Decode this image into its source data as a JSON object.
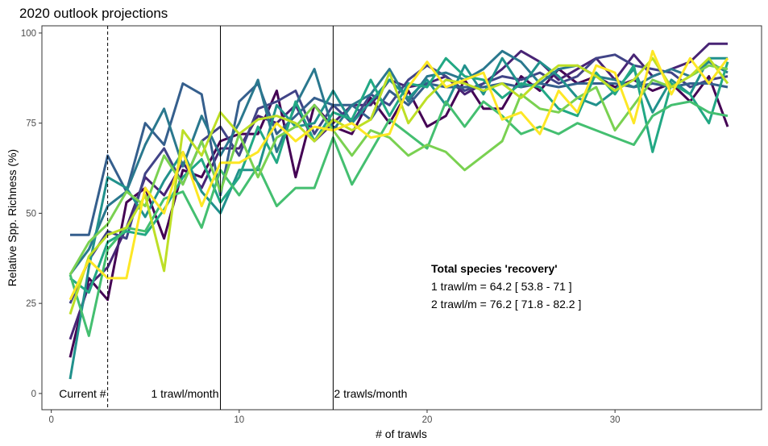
{
  "chart_data": {
    "type": "line",
    "title": "2020 outlook projections",
    "xlabel": "# of trawls",
    "ylabel": "Relative Spp. Richness (%)",
    "xlim": [
      -0.5,
      37.8
    ],
    "ylim": [
      -4.5,
      102
    ],
    "x_ticks": [
      0,
      10,
      20,
      30
    ],
    "y_ticks": [
      0,
      25,
      50,
      75,
      100
    ],
    "x_tick_labels": [
      "0",
      "10",
      "20",
      "30"
    ],
    "y_tick_labels": [
      "0",
      "25",
      "50",
      "75",
      "100"
    ],
    "grid": false,
    "legend": "none",
    "vlines": [
      {
        "x": 3,
        "style": "dashed",
        "label": "Current #",
        "label_anchor": "end"
      },
      {
        "x": 9,
        "style": "solid",
        "label": "1 trawl/month",
        "label_anchor": "end"
      },
      {
        "x": 15,
        "style": "solid",
        "label": "2 trawls/month",
        "label_anchor": "start"
      }
    ],
    "annotation": {
      "title": "Total species 'recovery'",
      "lines": [
        "1 trawl/m = 64.2 [ 53.8 - 71 ]",
        "2 trawl/m = 76.2 [ 71.8 - 82.2 ]"
      ]
    },
    "x": [
      1,
      2,
      3,
      4,
      5,
      6,
      7,
      8,
      9,
      10,
      11,
      12,
      13,
      14,
      15,
      16,
      17,
      18,
      19,
      20,
      21,
      22,
      23,
      24,
      25,
      26,
      27,
      28,
      29,
      30,
      31,
      32,
      33,
      34,
      35,
      36
    ],
    "series": [
      {
        "color": "#440154",
        "values": [
          10,
          32,
          26,
          53,
          57,
          43,
          62,
          60,
          70,
          72,
          72,
          84,
          60,
          80,
          74,
          72,
          82,
          75,
          84,
          74,
          77,
          87,
          79,
          79,
          88,
          84,
          90,
          86,
          88,
          85,
          87,
          84,
          86,
          81,
          88,
          74
        ]
      },
      {
        "color": "#482475",
        "values": [
          15,
          30,
          35,
          46,
          60,
          55,
          64,
          57,
          68,
          68,
          77,
          75,
          80,
          70,
          75,
          80,
          80,
          87,
          85,
          86,
          88,
          83,
          86,
          90,
          95,
          92,
          87,
          90,
          93,
          87,
          94,
          88,
          90,
          92,
          97,
          97
        ]
      },
      {
        "color": "#414487",
        "values": [
          25,
          37,
          45,
          43,
          61,
          68,
          58,
          70,
          74,
          66,
          79,
          81,
          84,
          72,
          80,
          75,
          83,
          80,
          87,
          91,
          88,
          84,
          86,
          88,
          87,
          89,
          86,
          88,
          93,
          94,
          91,
          90,
          89,
          85,
          87,
          88
        ]
      },
      {
        "color": "#355f8d",
        "values": [
          44,
          44,
          66,
          56,
          75,
          69,
          86,
          83,
          55,
          81,
          86,
          72,
          77,
          82,
          80,
          80,
          76,
          84,
          80,
          86,
          85,
          85,
          85,
          86,
          85,
          86,
          85,
          86,
          86,
          86,
          85,
          86,
          85,
          86,
          86,
          85
        ]
      },
      {
        "color": "#2a788e",
        "values": [
          33,
          40,
          52,
          56,
          69,
          79,
          63,
          77,
          66,
          75,
          87,
          67,
          80,
          90,
          73,
          80,
          83,
          90,
          81,
          88,
          89,
          87,
          90,
          95,
          92,
          86,
          90,
          91,
          88,
          87,
          85,
          88,
          90,
          88,
          92,
          89
        ]
      },
      {
        "color": "#21918c",
        "values": [
          4,
          35,
          60,
          57,
          49,
          59,
          67,
          56,
          50,
          62,
          62,
          80,
          74,
          75,
          84,
          75,
          81,
          87,
          82,
          87,
          80,
          91,
          83,
          93,
          85,
          92,
          88,
          82,
          80,
          84,
          90,
          78,
          87,
          83,
          93,
          93
        ]
      },
      {
        "color": "#22a884",
        "values": [
          32,
          28,
          42,
          45,
          44,
          51,
          60,
          65,
          53,
          60,
          74,
          64,
          81,
          70,
          78,
          76,
          87,
          77,
          86,
          85,
          93,
          88,
          87,
          82,
          86,
          85,
          79,
          77,
          89,
          83,
          91,
          67,
          86,
          83,
          75,
          92
        ]
      },
      {
        "color": "#44bf70",
        "values": [
          33,
          16,
          40,
          46,
          45,
          54,
          56,
          46,
          62,
          55,
          63,
          52,
          57,
          57,
          71,
          58,
          67,
          76,
          72,
          68,
          81,
          74,
          81,
          77,
          72,
          74,
          72,
          75,
          73,
          71,
          69,
          77,
          80,
          81,
          78,
          77
        ]
      },
      {
        "color": "#7ad151",
        "values": [
          33,
          42,
          47,
          56,
          52,
          66,
          58,
          70,
          56,
          72,
          60,
          71,
          74,
          80,
          73,
          66,
          73,
          71,
          66,
          69,
          67,
          62,
          66,
          70,
          83,
          79,
          78,
          82,
          85,
          73,
          80,
          87,
          85,
          88,
          91,
          90
        ]
      },
      {
        "color": "#bddf26",
        "values": [
          22,
          38,
          44,
          46,
          55,
          34,
          73,
          66,
          78,
          72,
          76,
          77,
          75,
          70,
          76,
          73,
          76,
          89,
          75,
          82,
          87,
          86,
          84,
          86,
          82,
          87,
          91,
          91,
          88,
          84,
          87,
          93,
          85,
          88,
          93,
          86
        ]
      },
      {
        "color": "#fde725",
        "values": [
          26,
          37,
          32,
          32,
          57,
          50,
          67,
          52,
          64,
          64,
          67,
          75,
          70,
          74,
          73,
          75,
          71,
          72,
          85,
          92,
          85,
          87,
          89,
          76,
          78,
          72,
          84,
          78,
          91,
          89,
          75,
          95,
          83,
          93,
          86,
          93
        ]
      }
    ]
  }
}
